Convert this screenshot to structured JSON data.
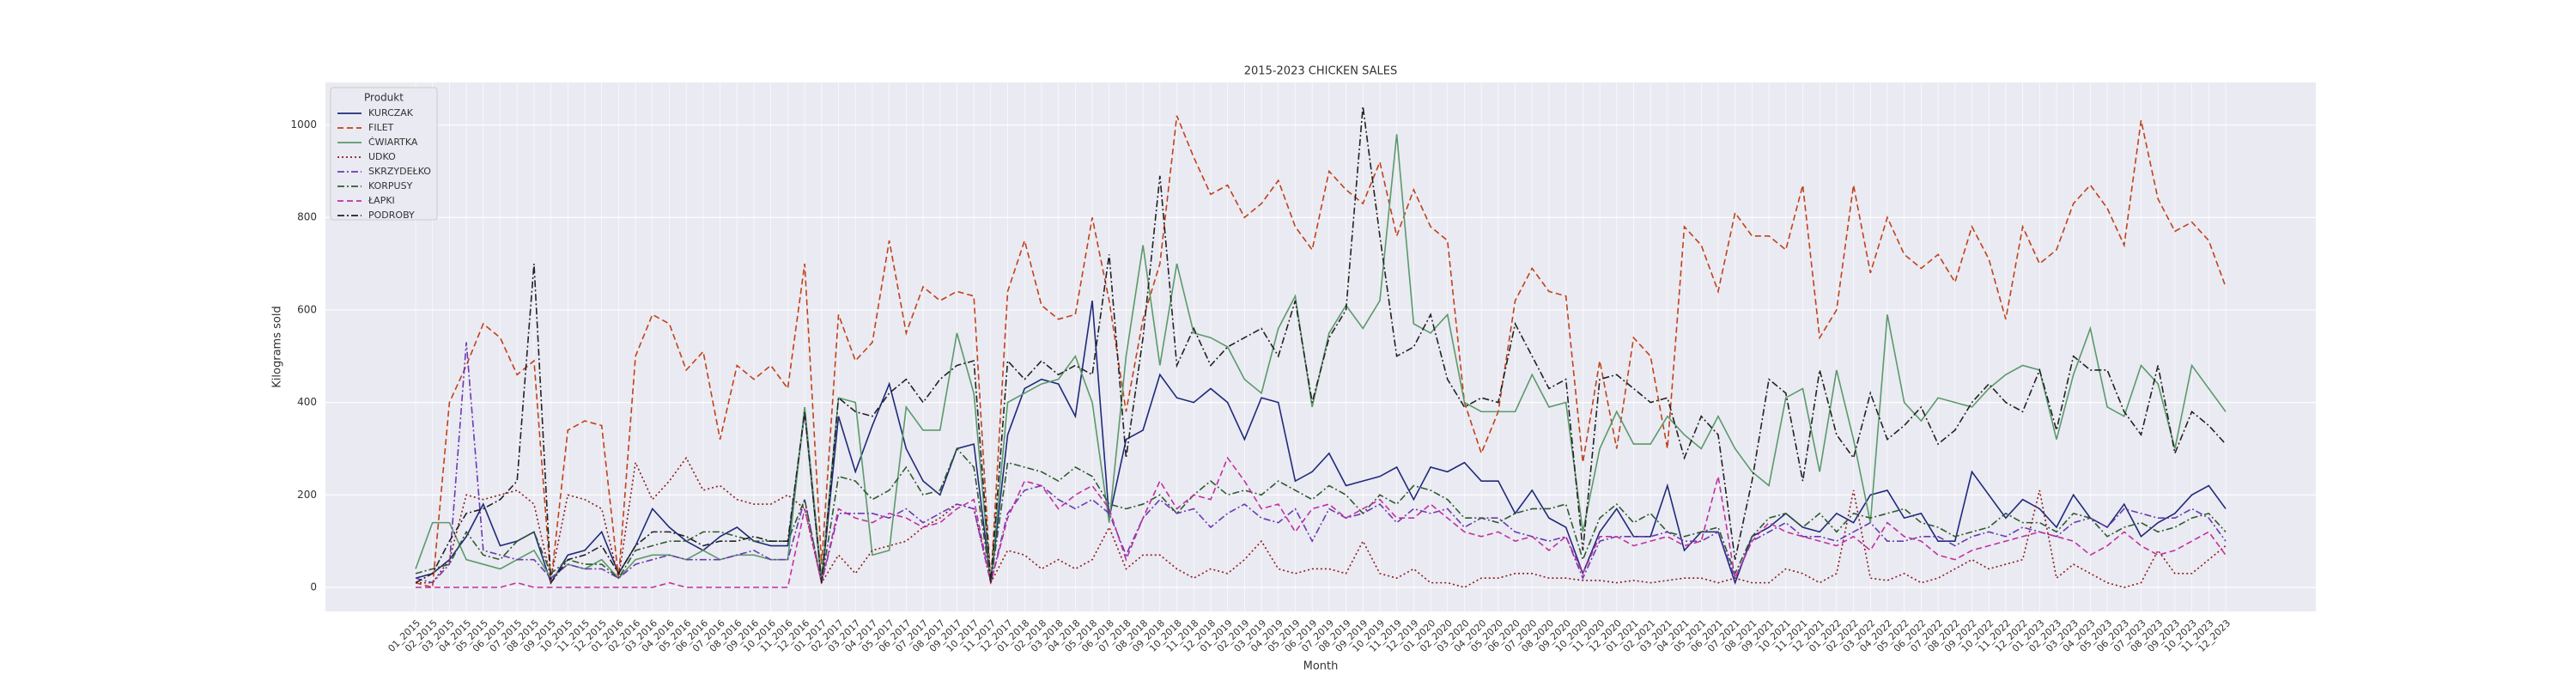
{
  "chart_data": {
    "type": "line",
    "title": "2015-2023 CHICKEN SALES",
    "xlabel": "Month",
    "ylabel": "Kilograms sold",
    "legend_title": "Produkt",
    "legend_loc": "upper left",
    "grid": true,
    "categories": [
      "01_2015",
      "02_2015",
      "03_2015",
      "04_2015",
      "05_2015",
      "06_2015",
      "07_2015",
      "08_2015",
      "09_2015",
      "10_2015",
      "11_2015",
      "12_2015",
      "01_2016",
      "02_2016",
      "03_2016",
      "04_2016",
      "05_2016",
      "06_2016",
      "07_2016",
      "08_2016",
      "09_2016",
      "10_2016",
      "11_2016",
      "12_2016",
      "01_2017",
      "02_2017",
      "03_2017",
      "04_2017",
      "05_2017",
      "06_2017",
      "07_2017",
      "08_2017",
      "09_2017",
      "10_2017",
      "11_2017",
      "12_2017",
      "01_2018",
      "02_2018",
      "03_2018",
      "04_2018",
      "05_2018",
      "06_2018",
      "07_2018",
      "08_2018",
      "09_2018",
      "10_2018",
      "11_2018",
      "12_2018",
      "01_2019",
      "02_2019",
      "03_2019",
      "04_2019",
      "05_2019",
      "06_2019",
      "07_2019",
      "08_2019",
      "09_2019",
      "10_2019",
      "11_2019",
      "12_2019",
      "01_2020",
      "02_2020",
      "03_2020",
      "04_2020",
      "05_2020",
      "06_2020",
      "07_2020",
      "08_2020",
      "09_2020",
      "10_2020",
      "11_2020",
      "12_2020",
      "01_2021",
      "02_2021",
      "03_2021",
      "04_2021",
      "05_2021",
      "06_2021",
      "07_2021",
      "08_2021",
      "09_2021",
      "10_2021",
      "11_2021",
      "12_2021",
      "01_2022",
      "02_2022",
      "03_2022",
      "04_2022",
      "05_2022",
      "06_2022",
      "07_2022",
      "08_2022",
      "09_2022",
      "10_2022",
      "11_2022",
      "12_2022",
      "01_2023",
      "02_2023",
      "03_2023",
      "04_2023",
      "05_2023",
      "06_2023",
      "07_2023",
      "08_2023",
      "09_2023",
      "10_2023",
      "11_2023",
      "12_2023"
    ],
    "ylim": [
      -52,
      1092
    ],
    "yticks": [
      0,
      200,
      400,
      600,
      800,
      1000
    ],
    "series": [
      {
        "name": "KURCZAK",
        "color": "#1f2a7a",
        "linestyle": "solid",
        "values": [
          20,
          30,
          60,
          110,
          180,
          90,
          100,
          120,
          10,
          70,
          80,
          120,
          30,
          90,
          170,
          130,
          100,
          80,
          110,
          130,
          100,
          90,
          90,
          380,
          10,
          370,
          250,
          350,
          440,
          300,
          230,
          200,
          300,
          310,
          10,
          330,
          430,
          450,
          440,
          370,
          620,
          150,
          320,
          340,
          460,
          410,
          400,
          430,
          400,
          320,
          410,
          400,
          230,
          250,
          290,
          220,
          230,
          240,
          260,
          190,
          260,
          250,
          270,
          230,
          230,
          160,
          210,
          150,
          130,
          30,
          120,
          170,
          110,
          110,
          220,
          80,
          120,
          120,
          10,
          110,
          130,
          160,
          130,
          120,
          160,
          140,
          200,
          210,
          150,
          160,
          100,
          100,
          250,
          200,
          150,
          190,
          170,
          130,
          200,
          150,
          130,
          180,
          110,
          140,
          160,
          200,
          220,
          170
        ]
      },
      {
        "name": "FILET",
        "color": "#c0421a",
        "linestyle": "dashed",
        "values": [
          10,
          0,
          400,
          480,
          570,
          540,
          460,
          490,
          10,
          340,
          360,
          350,
          20,
          500,
          590,
          570,
          470,
          510,
          320,
          480,
          450,
          480,
          430,
          700,
          50,
          590,
          490,
          530,
          750,
          550,
          650,
          620,
          640,
          630,
          10,
          640,
          750,
          610,
          580,
          590,
          800,
          620,
          380,
          580,
          700,
          1020,
          930,
          850,
          870,
          800,
          830,
          880,
          780,
          730,
          900,
          860,
          830,
          920,
          760,
          860,
          780,
          750,
          400,
          290,
          380,
          620,
          690,
          640,
          630,
          270,
          490,
          300,
          540,
          500,
          300,
          780,
          740,
          640,
          810,
          760,
          760,
          730,
          870,
          540,
          600,
          870,
          680,
          800,
          720,
          690,
          720,
          660,
          780,
          710,
          580,
          780,
          700,
          730,
          830,
          870,
          820,
          740,
          1010,
          840,
          770,
          790,
          750,
          650
        ]
      },
      {
        "name": "ĆWIARTKA",
        "color": "#5a9a6a",
        "linestyle": "solid",
        "values": [
          40,
          140,
          140,
          60,
          50,
          40,
          60,
          80,
          20,
          50,
          40,
          60,
          20,
          60,
          70,
          70,
          60,
          80,
          60,
          70,
          70,
          60,
          60,
          390,
          20,
          410,
          400,
          70,
          80,
          390,
          340,
          340,
          550,
          420,
          10,
          400,
          420,
          440,
          450,
          500,
          400,
          140,
          500,
          740,
          480,
          700,
          550,
          540,
          520,
          450,
          420,
          560,
          630,
          390,
          550,
          610,
          560,
          620,
          980,
          570,
          550,
          590,
          400,
          380,
          380,
          380,
          460,
          390,
          400,
          120,
          300,
          380,
          310,
          310,
          370,
          330,
          300,
          370,
          300,
          250,
          220,
          410,
          430,
          250,
          470,
          320,
          140,
          590,
          400,
          360,
          410,
          400,
          390,
          430,
          460,
          480,
          470,
          320,
          460,
          560,
          390,
          370,
          480,
          440,
          300,
          480,
          430,
          380
        ]
      },
      {
        "name": "UDKO",
        "color": "#8b1a1a",
        "linestyle": "dotted",
        "values": [
          10,
          10,
          60,
          200,
          190,
          200,
          210,
          180,
          20,
          200,
          190,
          170,
          20,
          270,
          190,
          230,
          280,
          210,
          220,
          190,
          180,
          180,
          200,
          170,
          10,
          70,
          30,
          80,
          90,
          100,
          130,
          150,
          180,
          170,
          10,
          80,
          70,
          40,
          60,
          40,
          60,
          130,
          40,
          70,
          70,
          40,
          20,
          40,
          30,
          60,
          100,
          40,
          30,
          40,
          40,
          30,
          100,
          30,
          20,
          40,
          10,
          10,
          0,
          20,
          20,
          30,
          30,
          20,
          20,
          15,
          15,
          10,
          15,
          10,
          15,
          20,
          20,
          10,
          20,
          10,
          10,
          40,
          30,
          10,
          30,
          210,
          20,
          15,
          30,
          10,
          20,
          40,
          60,
          40,
          50,
          60,
          210,
          20,
          50,
          30,
          10,
          0,
          10,
          80,
          30,
          30,
          60,
          90
        ]
      },
      {
        "name": "SKRZYDEŁKO",
        "color": "#6a3ab0",
        "linestyle": "dashdot",
        "values": [
          20,
          10,
          50,
          530,
          80,
          70,
          60,
          60,
          20,
          50,
          40,
          40,
          20,
          50,
          60,
          70,
          60,
          60,
          60,
          70,
          80,
          60,
          60,
          190,
          10,
          160,
          160,
          160,
          150,
          170,
          140,
          160,
          180,
          170,
          10,
          160,
          210,
          220,
          190,
          170,
          190,
          160,
          70,
          150,
          190,
          160,
          170,
          130,
          160,
          180,
          150,
          140,
          170,
          100,
          170,
          150,
          160,
          180,
          140,
          170,
          160,
          170,
          130,
          150,
          150,
          120,
          110,
          100,
          110,
          20,
          100,
          110,
          110,
          110,
          120,
          100,
          100,
          120,
          20,
          100,
          120,
          140,
          110,
          110,
          100,
          120,
          140,
          100,
          100,
          110,
          110,
          90,
          110,
          120,
          110,
          130,
          120,
          110,
          140,
          150,
          130,
          170,
          160,
          150,
          150,
          170,
          150,
          100
        ]
      },
      {
        "name": "KORPUSY",
        "color": "#2f5a2f",
        "linestyle": "dashdot",
        "values": [
          30,
          40,
          50,
          120,
          70,
          60,
          100,
          120,
          30,
          60,
          50,
          50,
          20,
          80,
          90,
          100,
          100,
          120,
          120,
          110,
          100,
          100,
          100,
          190,
          10,
          240,
          230,
          190,
          210,
          260,
          200,
          210,
          300,
          260,
          10,
          270,
          260,
          250,
          230,
          260,
          240,
          180,
          170,
          180,
          200,
          160,
          200,
          230,
          200,
          210,
          200,
          230,
          210,
          190,
          220,
          200,
          160,
          200,
          180,
          220,
          210,
          190,
          150,
          150,
          140,
          160,
          170,
          170,
          180,
          60,
          150,
          180,
          140,
          160,
          120,
          110,
          120,
          130,
          30,
          110,
          150,
          160,
          130,
          160,
          120,
          160,
          150,
          160,
          170,
          140,
          130,
          110,
          120,
          130,
          160,
          140,
          140,
          120,
          160,
          150,
          110,
          130,
          140,
          120,
          130,
          150,
          160,
          120
        ]
      },
      {
        "name": "ŁAPKI",
        "color": "#c030a0",
        "linestyle": "dashed",
        "values": [
          0,
          0,
          0,
          0,
          0,
          0,
          10,
          0,
          0,
          0,
          0,
          0,
          0,
          0,
          0,
          10,
          0,
          0,
          0,
          0,
          0,
          0,
          0,
          170,
          10,
          170,
          150,
          140,
          160,
          150,
          130,
          140,
          170,
          190,
          10,
          150,
          230,
          220,
          170,
          200,
          220,
          170,
          60,
          150,
          230,
          170,
          200,
          190,
          280,
          230,
          170,
          180,
          120,
          170,
          180,
          150,
          170,
          190,
          150,
          150,
          180,
          150,
          120,
          110,
          120,
          100,
          110,
          80,
          110,
          30,
          110,
          110,
          90,
          100,
          110,
          90,
          100,
          240,
          20,
          100,
          140,
          120,
          110,
          100,
          90,
          110,
          80,
          140,
          110,
          100,
          70,
          60,
          80,
          90,
          100,
          110,
          120,
          110,
          100,
          70,
          90,
          120,
          90,
          70,
          80,
          100,
          120,
          70
        ]
      },
      {
        "name": "PODROBY",
        "color": "#222222",
        "linestyle": "dashdot",
        "values": [
          10,
          30,
          100,
          160,
          170,
          190,
          230,
          700,
          10,
          60,
          70,
          90,
          30,
          90,
          120,
          120,
          110,
          90,
          100,
          100,
          110,
          100,
          100,
          380,
          10,
          410,
          380,
          370,
          420,
          450,
          400,
          450,
          480,
          490,
          10,
          490,
          450,
          490,
          460,
          480,
          460,
          720,
          280,
          540,
          890,
          480,
          560,
          480,
          520,
          540,
          560,
          500,
          620,
          400,
          540,
          600,
          1040,
          760,
          500,
          520,
          590,
          450,
          390,
          410,
          400,
          570,
          500,
          430,
          450,
          80,
          450,
          460,
          430,
          400,
          410,
          280,
          370,
          330,
          60,
          230,
          450,
          420,
          230,
          470,
          330,
          280,
          420,
          320,
          350,
          390,
          310,
          340,
          400,
          440,
          400,
          380,
          470,
          340,
          500,
          470,
          470,
          380,
          330,
          480,
          290,
          380,
          350,
          310
        ]
      }
    ]
  }
}
